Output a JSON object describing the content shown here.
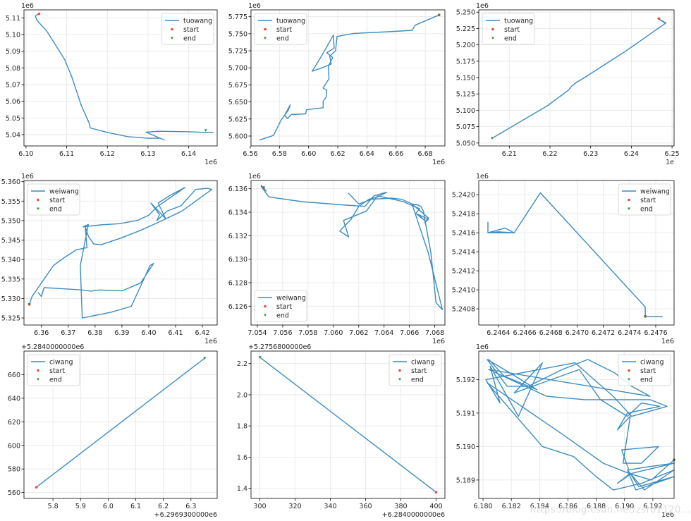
{
  "legend_labels": {
    "start": "start",
    "end": "end"
  },
  "colors": {
    "line": "#3c8cc2",
    "start": "#e84a3c",
    "end": "#2e8b3a",
    "grid": "#e6e6e6"
  },
  "watermark": "https://blog.csdn.net/zsro1120...",
  "chart_data": [
    {
      "type": "line",
      "name": "tuowang",
      "legend": "top-right",
      "xlim": [
        6.0995,
        6.147
      ],
      "ylim": [
        5.0332,
        5.1148
      ],
      "xticks": [
        "6.10",
        "6.11",
        "6.12",
        "6.13",
        "6.14"
      ],
      "xtick_values": [
        6.1,
        6.11,
        6.12,
        6.13,
        6.14
      ],
      "yticks": [
        "5.04",
        "5.05",
        "5.06",
        "5.07",
        "5.08",
        "5.09",
        "5.10",
        "5.11"
      ],
      "ytick_values": [
        5.04,
        5.05,
        5.06,
        5.07,
        5.08,
        5.09,
        5.1,
        5.11
      ],
      "x_offset": "1e6",
      "y_offset": "1e6",
      "x": [
        6.1032,
        6.1025,
        6.1023,
        6.1027,
        6.1038,
        6.105,
        6.1072,
        6.1095,
        6.1112,
        6.1135,
        6.1155,
        6.1158,
        6.12,
        6.125,
        6.13,
        6.133,
        6.134,
        6.133,
        6.1295,
        6.1325,
        6.14,
        6.143,
        6.146
      ],
      "y": [
        5.1124,
        5.1115,
        5.111,
        5.1085,
        5.1055,
        5.1025,
        5.094,
        5.085,
        5.075,
        5.058,
        5.047,
        5.044,
        5.0413,
        5.0388,
        5.0378,
        5.0378,
        5.0368,
        5.0378,
        5.0415,
        5.042,
        5.0417,
        5.0414,
        5.0413
      ],
      "start": [
        6.1032,
        5.1124
      ],
      "end": [
        6.1442,
        5.0425
      ]
    },
    {
      "type": "line",
      "name": "tuowang",
      "legend": "top-left",
      "xlim": [
        6.5605,
        6.6935
      ],
      "ylim": [
        5.5855,
        5.785
      ],
      "xticks": [
        "6.56",
        "6.58",
        "6.60",
        "6.62",
        "6.64",
        "6.66",
        "6.68"
      ],
      "xtick_values": [
        6.56,
        6.58,
        6.6,
        6.62,
        6.64,
        6.66,
        6.68
      ],
      "yticks": [
        "5.600",
        "5.625",
        "5.650",
        "5.675",
        "5.700",
        "5.725",
        "5.750",
        "5.775"
      ],
      "ytick_values": [
        5.6,
        5.625,
        5.65,
        5.675,
        5.7,
        5.725,
        5.75,
        5.775
      ],
      "x_offset": "1e6",
      "y_offset": "1e6",
      "x": [
        6.5665,
        6.576,
        6.581,
        6.586,
        6.5875,
        6.5835,
        6.5855,
        6.588,
        6.598,
        6.5985,
        6.61,
        6.61,
        6.612,
        6.6125,
        6.61,
        6.614,
        6.6135,
        6.6165,
        6.6125,
        6.6175,
        6.617,
        6.6085,
        6.6025,
        6.611,
        6.614,
        6.6155,
        6.6145,
        6.6185,
        6.6195,
        6.631,
        6.655,
        6.671,
        6.673,
        6.6895
      ],
      "y": [
        5.5942,
        5.601,
        5.623,
        5.6375,
        5.646,
        5.6305,
        5.6255,
        5.6315,
        5.6325,
        5.6385,
        5.6415,
        5.651,
        5.657,
        5.6665,
        5.6705,
        5.684,
        5.702,
        5.715,
        5.722,
        5.729,
        5.748,
        5.716,
        5.695,
        5.7015,
        5.7045,
        5.7055,
        5.717,
        5.725,
        5.746,
        5.7505,
        5.753,
        5.755,
        5.7625,
        5.7775
      ],
      "start": [
        6.6895,
        5.7775
      ],
      "end": [
        6.6895,
        5.7775
      ]
    },
    {
      "type": "line",
      "name": "tuowang",
      "legend": "top-left",
      "xlim": [
        6.2025,
        6.2505
      ],
      "ylim": [
        5.0455,
        5.2535
      ],
      "xticks": [
        "6.21",
        "6.22",
        "6.23",
        "6.24",
        "6.25"
      ],
      "xtick_values": [
        6.21,
        6.22,
        6.23,
        6.24,
        6.25
      ],
      "yticks": [
        "5.050",
        "5.075",
        "5.100",
        "5.125",
        "5.150",
        "5.175",
        "5.200",
        "5.225",
        "5.250"
      ],
      "ytick_values": [
        5.05,
        5.075,
        5.1,
        5.125,
        5.15,
        5.175,
        5.2,
        5.225,
        5.25
      ],
      "x_offset": "1e",
      "y_offset": "1e6",
      "x": [
        6.2058,
        6.2195,
        6.2245,
        6.2255,
        6.2265,
        6.2285,
        6.2385,
        6.2485,
        6.2465,
        6.2483
      ],
      "y": [
        5.0572,
        5.1075,
        5.1305,
        5.138,
        5.1425,
        5.15,
        5.19,
        5.2335,
        5.2405,
        5.2335
      ],
      "start": [
        6.2468,
        5.2402
      ],
      "end": [
        6.2058,
        5.0572
      ]
    },
    {
      "type": "line",
      "name": "weiwang",
      "legend": "top-left",
      "xlim": [
        6.3535,
        6.4255
      ],
      "ylim": [
        5.3232,
        5.3603
      ],
      "xticks": [
        "6.36",
        "6.37",
        "6.38",
        "6.39",
        "6.40",
        "6.41",
        "6.42"
      ],
      "xtick_values": [
        6.36,
        6.37,
        6.38,
        6.39,
        6.4,
        6.41,
        6.42
      ],
      "yticks": [
        "5.325",
        "5.330",
        "5.335",
        "5.340",
        "5.345",
        "5.350",
        "5.355",
        "5.360"
      ],
      "ytick_values": [
        5.325,
        5.33,
        5.335,
        5.34,
        5.345,
        5.35,
        5.355,
        5.36
      ],
      "x_offset": "1e6",
      "y_offset": "1e6",
      "x": [
        6.3555,
        6.3565,
        6.3585,
        6.362,
        6.3645,
        6.3685,
        6.373,
        6.3765,
        6.377,
        6.3763,
        6.3775,
        6.3795,
        6.3822,
        6.3895,
        6.397,
        6.405,
        6.4125,
        6.4235,
        6.4218,
        6.4175,
        6.412,
        6.407,
        6.403,
        6.404,
        6.4008,
        6.4063,
        6.4035,
        6.408,
        6.4135,
        6.403,
        6.4,
        6.396,
        6.389,
        6.382,
        6.3755,
        6.3775,
        6.3745,
        6.3752,
        6.386,
        6.3935,
        6.4005,
        6.4018,
        6.397,
        6.3902,
        6.3815,
        6.3785,
        6.375,
        6.368,
        6.361,
        6.36,
        6.3588
      ],
      "y": [
        5.3285,
        5.3305,
        5.3325,
        5.336,
        5.3385,
        5.3405,
        5.3425,
        5.343,
        5.343,
        5.3485,
        5.346,
        5.344,
        5.3438,
        5.3455,
        5.3475,
        5.35,
        5.3525,
        5.358,
        5.3583,
        5.358,
        5.3538,
        5.3525,
        5.35,
        5.3515,
        5.3545,
        5.3505,
        5.3545,
        5.3565,
        5.3585,
        5.3535,
        5.3514,
        5.3501,
        5.3492,
        5.3489,
        5.3484,
        5.349,
        5.3385,
        5.325,
        5.3265,
        5.328,
        5.3385,
        5.339,
        5.334,
        5.332,
        5.3322,
        5.3319,
        5.3322,
        5.3325,
        5.3328,
        5.3305,
        5.3315
      ],
      "start": [
        6.3555,
        5.3285
      ],
      "end": [
        6.3555,
        5.3285
      ]
    },
    {
      "type": "line",
      "name": "weiwang",
      "legend": "bottom-left",
      "xlim": [
        7.0535,
        7.0688
      ],
      "ylim": [
        6.1244,
        6.1367
      ],
      "xticks": [
        "7.054",
        "7.056",
        "7.058",
        "7.060",
        "7.062",
        "7.064",
        "7.066",
        "7.068"
      ],
      "xtick_values": [
        7.054,
        7.056,
        7.058,
        7.06,
        7.062,
        7.064,
        7.066,
        7.068
      ],
      "yticks": [
        "6.126",
        "6.128",
        "6.130",
        "6.132",
        "6.134",
        "6.136"
      ],
      "ytick_values": [
        6.126,
        6.128,
        6.13,
        6.132,
        6.134,
        6.136
      ],
      "x_offset": "1e6",
      "y_offset": "1e6",
      "x": [
        7.0543,
        7.0547,
        7.0543,
        7.0549,
        7.0575,
        7.061,
        7.0625,
        7.0632,
        7.0642,
        7.0635,
        7.0628,
        7.062,
        7.0614,
        7.0605,
        7.0612,
        7.0608,
        7.0626,
        7.0635,
        7.0655,
        7.0668,
        7.0665,
        7.0672,
        7.0667,
        7.0675,
        7.0672,
        7.0675,
        7.0662,
        7.0675,
        7.0686,
        7.0681,
        7.0677,
        7.0671,
        7.0669,
        7.0667,
        7.0662,
        7.0654,
        7.0645,
        7.063,
        7.062,
        7.0612
      ],
      "y": [
        6.1363,
        6.1358,
        6.1362,
        6.1353,
        6.1349,
        6.1346,
        6.1345,
        6.1354,
        6.1357,
        6.1353,
        6.1351,
        6.1345,
        6.1334,
        6.1324,
        6.1319,
        6.1333,
        6.1341,
        6.1354,
        6.1349,
        6.1343,
        6.1339,
        6.1333,
        6.1338,
        6.1334,
        6.1331,
        6.1335,
        6.1347,
        6.1305,
        6.1257,
        6.1263,
        6.1305,
        6.1341,
        6.1345,
        6.1346,
        6.1347,
        6.1351,
        6.1352,
        6.1351,
        6.1347,
        6.1356
      ],
      "start": [
        7.0545,
        6.1361
      ],
      "end": [
        7.0545,
        6.1361
      ]
    },
    {
      "type": "line",
      "name": "weiwang",
      "legend": "top-right",
      "xlim": [
        6.24625,
        6.24774
      ],
      "ylim": [
        5.24063,
        5.24215
      ],
      "xticks": [
        "6.2464",
        "6.2466",
        "6.2468",
        "6.2470",
        "6.2472",
        "6.2474",
        "6.2476"
      ],
      "xtick_values": [
        6.2464,
        6.2466,
        6.2468,
        6.247,
        6.2472,
        6.2474,
        6.2476
      ],
      "yticks": [
        "5.2408",
        "5.2410",
        "5.2412",
        "5.2414",
        "5.2416",
        "5.2418",
        "5.2420"
      ],
      "ytick_values": [
        5.2408,
        5.241,
        5.2412,
        5.2414,
        5.2416,
        5.2418,
        5.242
      ],
      "x_offset": "1e6",
      "y_offset": "1e6",
      "x": [
        6.24632,
        6.24632,
        6.24645,
        6.24652,
        6.2464,
        6.24632,
        6.24652,
        6.24672,
        6.24752,
        6.24752,
        6.24765
      ],
      "y": [
        5.24171,
        5.2416,
        5.24165,
        5.2416,
        5.24161,
        5.2416,
        5.2416,
        5.24202,
        5.24082,
        5.24072,
        5.24072
      ],
      "start": [
        6.24752,
        5.24072
      ],
      "end": [
        6.24752,
        5.24072
      ]
    },
    {
      "type": "line",
      "name": "ciwang",
      "legend": "top-left",
      "xlim": [
        5.695,
        6.395
      ],
      "ylim": [
        555,
        680
      ],
      "xticks": [
        "5.8",
        "5.9",
        "6.0",
        "6.1",
        "6.2",
        "6.3"
      ],
      "xtick_values": [
        5.8,
        5.9,
        6.0,
        6.1,
        6.2,
        6.3
      ],
      "yticks": [
        "560",
        "580",
        "600",
        "620",
        "640",
        "660"
      ],
      "ytick_values": [
        560,
        580,
        600,
        620,
        640,
        660
      ],
      "x_offset": "+6.2969300000e6",
      "y_offset": "+5.2840000000e6",
      "x": [
        5.74,
        6.35
      ],
      "y": [
        564.5,
        674
      ],
      "start": [
        5.74,
        564.5
      ],
      "end": [
        6.35,
        674
      ]
    },
    {
      "type": "line",
      "name": "ciwang",
      "legend": "top-right",
      "xlim": [
        295,
        405
      ],
      "ylim": [
        1.335,
        2.28
      ],
      "xticks": [
        "300",
        "320",
        "340",
        "360",
        "380",
        "400"
      ],
      "xtick_values": [
        300,
        320,
        340,
        360,
        380,
        400
      ],
      "yticks": [
        "1.4",
        "1.6",
        "1.8",
        "2.0",
        "2.2"
      ],
      "ytick_values": [
        1.4,
        1.6,
        1.8,
        2.0,
        2.2
      ],
      "x_offset": "+6.2840000000e6",
      "y_offset": "+5.2756800000e6",
      "x": [
        300,
        400
      ],
      "y": [
        2.24,
        1.375
      ],
      "start": [
        400,
        1.375
      ],
      "end": [
        300,
        2.24
      ]
    },
    {
      "type": "line",
      "name": "ciwang",
      "legend": "top-right",
      "xlim": [
        6.1797,
        6.1935
      ],
      "ylim": [
        5.18845,
        5.19285
      ],
      "xticks": [
        "6.180",
        "6.182",
        "6.184",
        "6.186",
        "6.188",
        "6.190",
        "6.192"
      ],
      "xtick_values": [
        6.18,
        6.182,
        6.184,
        6.186,
        6.188,
        6.19,
        6.192
      ],
      "yticks": [
        "5.189",
        "5.190",
        "5.191",
        "5.192"
      ],
      "ytick_values": [
        5.189,
        5.19,
        5.191,
        5.192
      ],
      "x_offset": "1e6",
      "y_offset": "1e6",
      "x": [
        6.1804,
        6.1815,
        6.1838,
        6.1819,
        6.1803,
        6.1817,
        6.1832,
        6.1856,
        6.1874,
        6.1893,
        6.1905,
        6.1918,
        6.1804,
        6.1845,
        6.1872,
        6.1918,
        6.193,
        6.1905,
        6.1892,
        6.1865,
        6.1802,
        6.1812,
        6.1805,
        6.1825,
        6.1842,
        6.1822,
        6.1868,
        6.1883,
        6.1902,
        6.1912,
        6.1925,
        6.1902,
        6.1895,
        6.1904,
        6.1899,
        6.1912,
        6.1924,
        6.1898,
        6.1903,
        6.1917,
        6.1935,
        6.1905,
        6.1895,
        6.1904,
        6.191,
        6.1935,
        6.1908,
        6.1902,
        6.1914,
        6.1935,
        6.1912,
        6.1892,
        6.188,
        6.1864,
        6.1842,
        6.1803,
        6.1855,
        6.1885,
        6.1903,
        6.1919,
        6.1935
      ],
      "y": [
        5.1926,
        5.1921,
        5.1917,
        5.1922,
        5.1926,
        5.1918,
        5.1918,
        5.1923,
        5.1926,
        5.1922,
        5.1918,
        5.1915,
        5.1923,
        5.1915,
        5.1914,
        5.1914,
        5.1912,
        5.1909,
        5.1915,
        5.1925,
        5.192,
        5.1913,
        5.1924,
        5.1909,
        5.1925,
        5.1916,
        5.1923,
        5.1914,
        5.1909,
        5.1913,
        5.1912,
        5.191,
        5.1905,
        5.1909,
        5.1895,
        5.1895,
        5.19,
        5.1899,
        5.1893,
        5.1894,
        5.1895,
        5.1892,
        5.1889,
        5.1892,
        5.1888,
        5.1891,
        5.1887,
        5.1893,
        5.1887,
        5.1893,
        5.1889,
        5.1887,
        5.1891,
        5.1897,
        5.19,
        5.1919,
        5.1904,
        5.1895,
        5.1892,
        5.189,
        5.1896
      ],
      "start": [
        6.1935,
        5.1896
      ],
      "end": [
        6.1935,
        5.1896
      ]
    }
  ]
}
